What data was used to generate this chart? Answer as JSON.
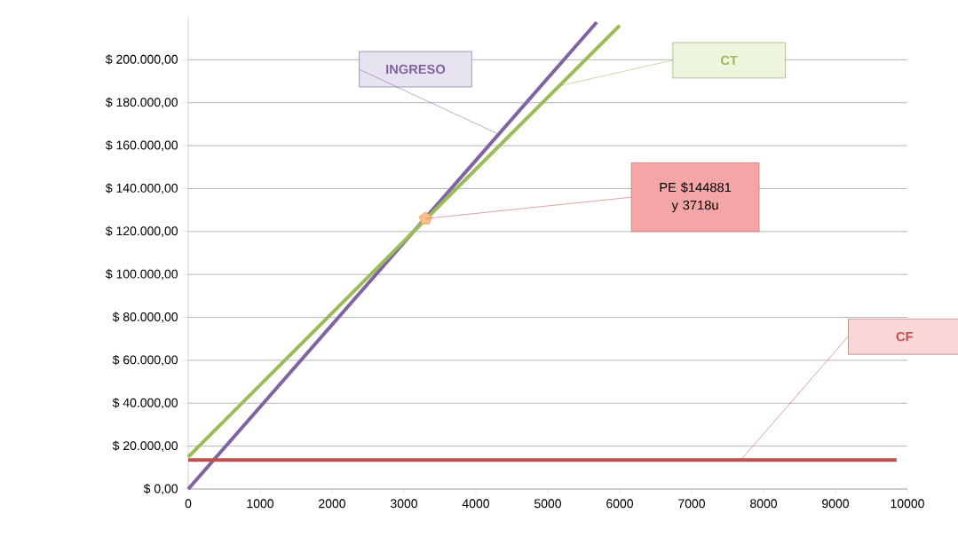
{
  "chart_data": {
    "type": "line",
    "xlim": [
      0,
      10000
    ],
    "xticks": [
      0,
      1000,
      2000,
      3000,
      4000,
      5000,
      6000,
      7000,
      8000,
      9000,
      10000
    ],
    "ylim": [
      0,
      220000
    ],
    "yticks": [
      {
        "value": 0,
        "label": "$ 0,00"
      },
      {
        "value": 20000,
        "label": "$ 20.000,00"
      },
      {
        "value": 40000,
        "label": "$ 40.000,00"
      },
      {
        "value": 60000,
        "label": "$ 60.000,00"
      },
      {
        "value": 80000,
        "label": "$ 80.000,00"
      },
      {
        "value": 100000,
        "label": "$ 100.000,00"
      },
      {
        "value": 120000,
        "label": "$ 120.000,00"
      },
      {
        "value": 140000,
        "label": "$ 140.000,00"
      },
      {
        "value": 160000,
        "label": "$ 160.000,00"
      },
      {
        "value": 180000,
        "label": "$ 180.000,00"
      },
      {
        "value": 200000,
        "label": "$ 200.000,00"
      }
    ],
    "grid": "y",
    "legend": false,
    "marker": "none",
    "line_style": "solid",
    "series": [
      {
        "name": "INGRESO",
        "color": "#8064a2",
        "x": [
          0,
          5680
        ],
        "values": [
          0,
          217500
        ]
      },
      {
        "name": "CT",
        "color": "#9bbb59",
        "x": [
          0,
          6000
        ],
        "values": [
          15000,
          216000
        ]
      },
      {
        "name": "CF",
        "color": "#c0504d",
        "x": [
          0,
          9850
        ],
        "values": [
          13500,
          13500
        ]
      },
      {
        "type": "scatter",
        "color": "#fbc08a",
        "x": [
          3300
        ],
        "values": [
          126000
        ]
      }
    ],
    "annotations": [
      "PE $144881 y 3718u"
    ]
  }
}
